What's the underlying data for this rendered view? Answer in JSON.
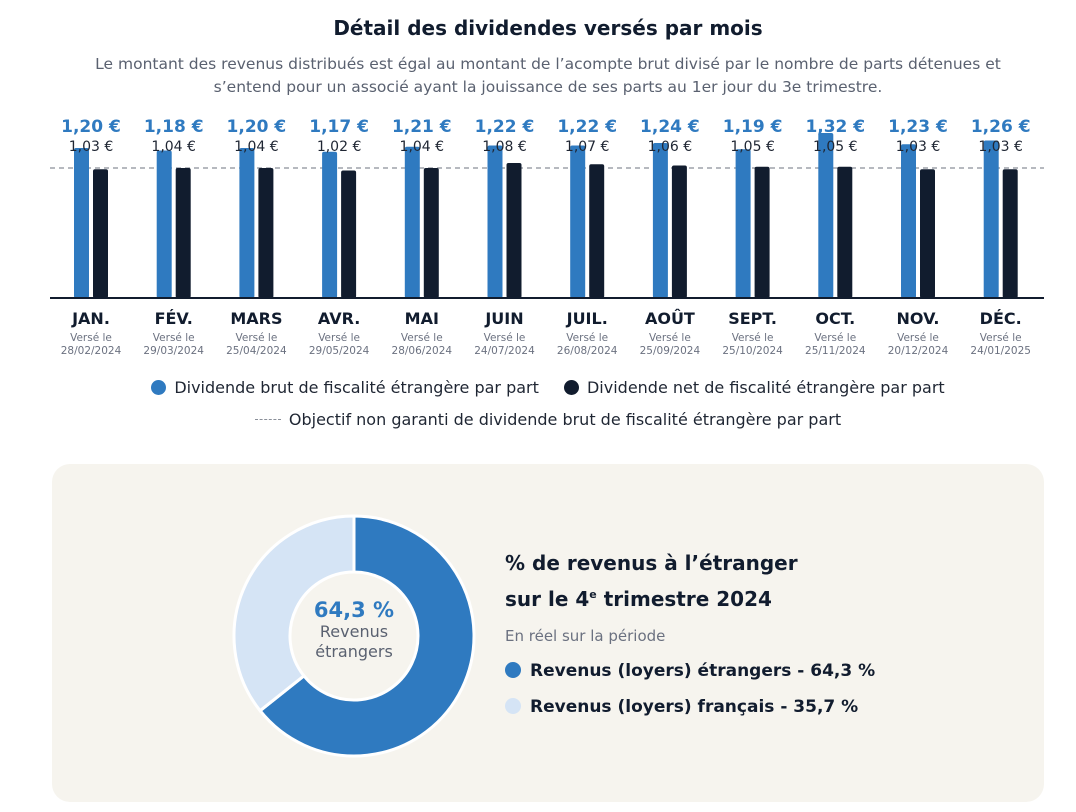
{
  "title": "Détail des dividendes versés par mois",
  "subtitle": "Le montant des revenus distribués est égal au montant de l’acompte brut divisé par le nombre de parts détenues et s’entend pour un associé ayant la jouissance de ses parts au 1er jour du 3e trimestre.",
  "colors": {
    "gross": "#2f7ac0",
    "net": "#111c2e",
    "objective": "#8a8f99",
    "foreign": "#2f7ac0",
    "french": "#d5e4f5"
  },
  "chart_data": {
    "type": "bar",
    "title": "Détail des dividendes versés par mois",
    "categories": [
      "JAN.",
      "FÉV.",
      "MARS",
      "AVR.",
      "MAI",
      "JUIN",
      "JUIL.",
      "AOÛT",
      "SEPT.",
      "OCT.",
      "NOV.",
      "DÉC."
    ],
    "paid_label": "Versé le",
    "paid_dates": [
      "28/02/2024",
      "29/03/2024",
      "25/04/2024",
      "29/05/2024",
      "28/06/2024",
      "24/07/2024",
      "26/08/2024",
      "25/09/2024",
      "25/10/2024",
      "25/11/2024",
      "20/12/2024",
      "24/01/2025"
    ],
    "series": [
      {
        "name": "Dividende brut de fiscalité étrangère par part",
        "values": [
          1.2,
          1.18,
          1.2,
          1.17,
          1.21,
          1.22,
          1.22,
          1.24,
          1.19,
          1.32,
          1.23,
          1.26
        ],
        "labels": [
          "1,20 €",
          "1,18 €",
          "1,20 €",
          "1,17 €",
          "1,21 €",
          "1,22 €",
          "1,22 €",
          "1,24 €",
          "1,19 €",
          "1,32 €",
          "1,23 €",
          "1,26 €"
        ]
      },
      {
        "name": "Dividende net de fiscalité étrangère par part",
        "values": [
          1.03,
          1.04,
          1.04,
          1.02,
          1.04,
          1.08,
          1.07,
          1.06,
          1.05,
          1.05,
          1.03,
          1.03
        ],
        "labels": [
          "1,03 €",
          "1,04 €",
          "1,04 €",
          "1,02 €",
          "1,04 €",
          "1,08 €",
          "1,07 €",
          "1,06 €",
          "1,05 €",
          "1,05 €",
          "1,03 €",
          "1,03 €"
        ]
      }
    ],
    "objective": {
      "name": "Objectif non garanti de dividende brut de fiscalité étrangère par part",
      "value": 1.04
    },
    "ylim": [
      0,
      1.4
    ]
  },
  "donut": {
    "title_line1": "% de revenus à l’étranger",
    "title_line2_pre": "sur le 4",
    "title_line2_sup": "e",
    "title_line2_post": " trimestre 2024",
    "subtitle": "En réel sur la période",
    "center_value": "64,3 %",
    "center_label_1": "Revenus",
    "center_label_2": "étrangers",
    "slices": [
      {
        "name": "Revenus (loyers) étrangers",
        "value": 64.3,
        "legend": "Revenus (loyers) étrangers - 64,3 %"
      },
      {
        "name": "Revenus (loyers) français",
        "value": 35.7,
        "legend": "Revenus (loyers) français - 35,7 %"
      }
    ]
  }
}
